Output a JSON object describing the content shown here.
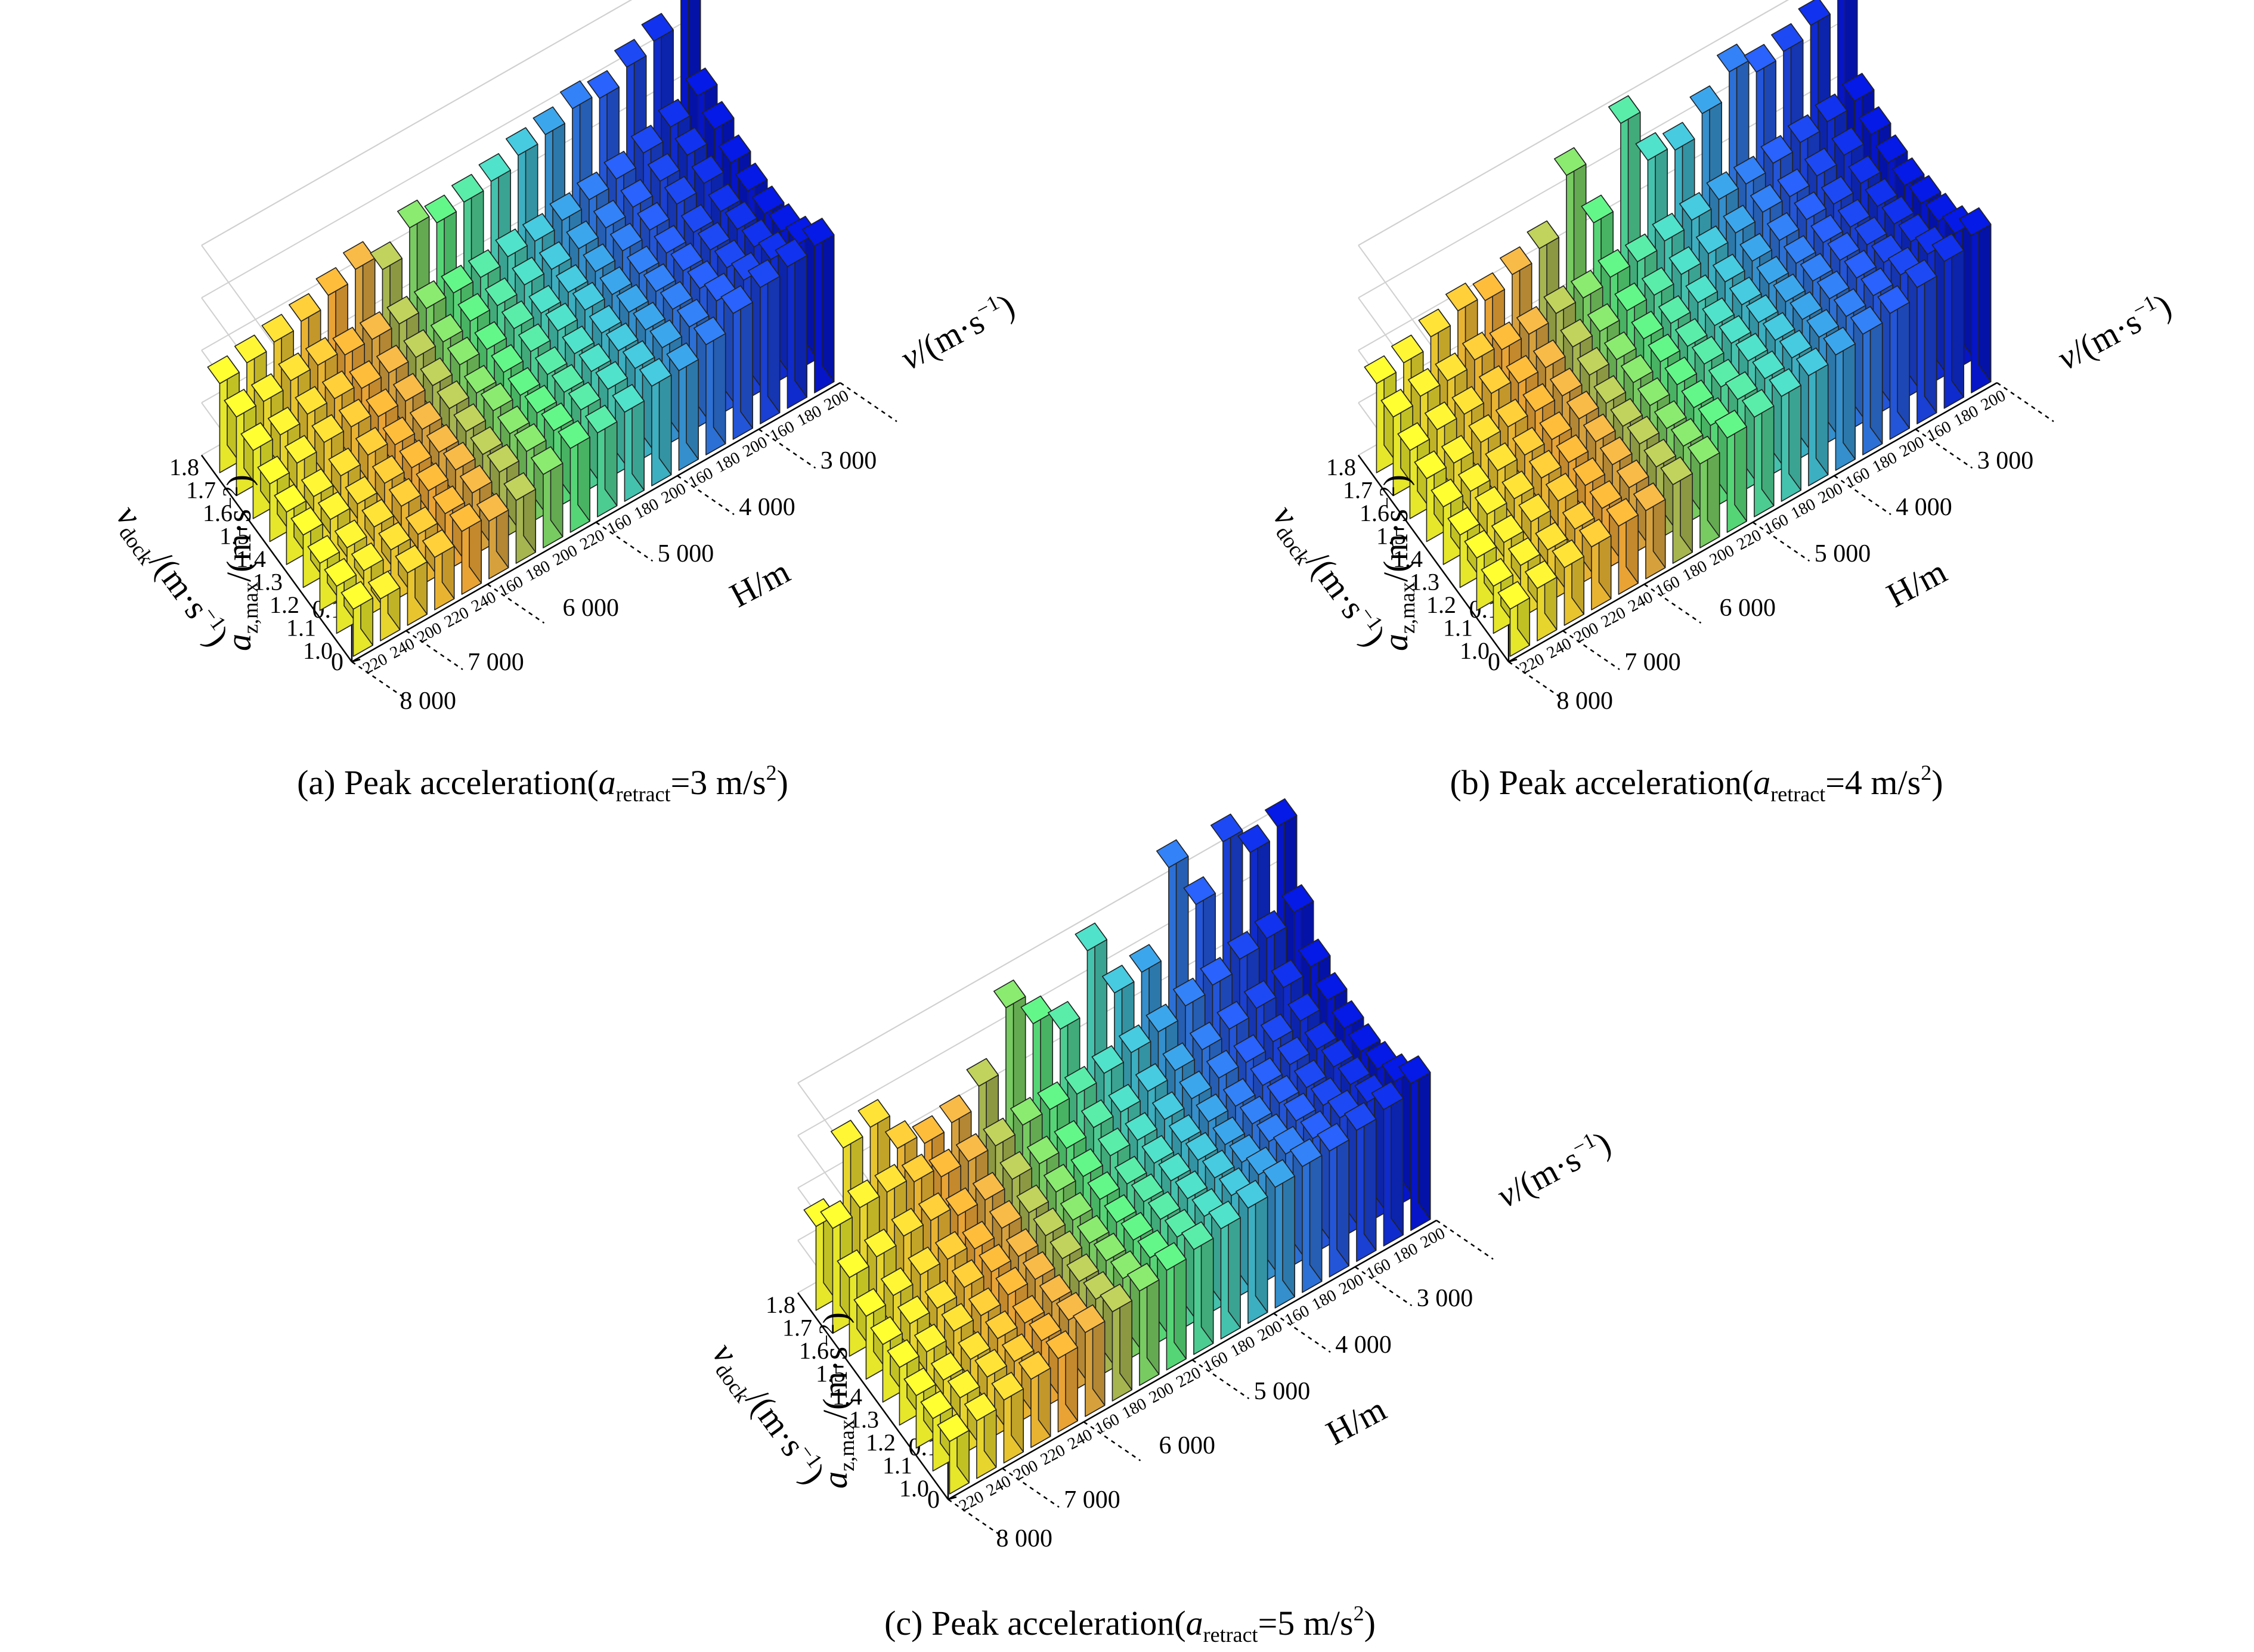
{
  "labels": {
    "z_label": "a",
    "z_label_sub": "z,max",
    "z_label_unit": "/(m·s",
    "z_label_exp": "−2",
    "z_label_close": ")",
    "vdock_label": "v",
    "vdock_label_sub": "dock",
    "vdock_label_unit": "/(m·s",
    "vdock_label_exp": "−1",
    "vdock_label_close": ")",
    "v_label": "v",
    "v_label_unit": "/(m·s",
    "v_label_exp": "−1",
    "v_label_close": ")",
    "h_label": "H/m"
  },
  "axes": {
    "z_ticks": [
      "0",
      "0.1",
      "0.2",
      "0.3",
      "0.4"
    ],
    "vdock_ticks": [
      "1.0",
      "1.1",
      "1.2",
      "1.3",
      "1.4",
      "1.5",
      "1.6",
      "1.7",
      "1.8"
    ],
    "H_groups": [
      "3 000",
      "4 000",
      "5 000",
      "6 000",
      "7 000",
      "8 000"
    ],
    "v_subticks": [
      "160",
      "180",
      "200",
      "220",
      "240"
    ]
  },
  "colors": {
    "yellow": "#f7f72e",
    "orange": "#fba43a",
    "green": "#5fe874",
    "cyan": "#45cccb",
    "blue": "#2a64ec",
    "navy": "#0517d6"
  },
  "captions": [
    {
      "prefix": "(a) Peak acceleration(",
      "var": "a",
      "sub": "retract",
      "mid": "=3 m/s",
      "exp": "2",
      "suffix": ")"
    },
    {
      "prefix": "(b) Peak acceleration(",
      "var": "a",
      "sub": "retract",
      "mid": "=4 m/s",
      "exp": "2",
      "suffix": ")"
    },
    {
      "prefix": "(c) Peak acceleration(",
      "var": "a",
      "sub": "retract",
      "mid": "=5 m/s",
      "exp": "2",
      "suffix": ")"
    }
  ],
  "chart_data": [
    {
      "type": "bar3d",
      "title": "(a) Peak acceleration(aretract=3 m/s2)",
      "xlabel": "H/m · v/(m·s−1)",
      "ylabel": "vdock/(m·s−1)",
      "zlabel": "az,max/(m·s−2)",
      "zlim": [
        0,
        0.4
      ],
      "x_levels": [
        "8000/240",
        "8000/220",
        "7000/240",
        "7000/220",
        "7000/200",
        "6000/220",
        "6000/200",
        "6000/180",
        "6000/160",
        "5000/200",
        "5000/180",
        "5000/160",
        "4000/200",
        "4000/180",
        "4000/160",
        "3000/200",
        "3000/180",
        "3000/160"
      ],
      "y_levels": [
        1.0,
        1.1,
        1.2,
        1.3,
        1.4,
        1.5,
        1.6,
        1.7,
        1.8
      ],
      "values": [
        [
          0.09,
          0.08,
          0.1,
          0.1,
          0.12,
          0.11,
          0.12,
          0.14,
          0.16,
          0.16,
          0.17,
          0.19,
          0.19,
          0.21,
          0.24,
          0.26,
          0.27,
          0.28
        ],
        [
          0.09,
          0.09,
          0.1,
          0.1,
          0.11,
          0.12,
          0.13,
          0.14,
          0.15,
          0.16,
          0.17,
          0.18,
          0.19,
          0.2,
          0.22,
          0.23,
          0.24,
          0.24
        ],
        [
          0.09,
          0.09,
          0.1,
          0.11,
          0.11,
          0.12,
          0.12,
          0.13,
          0.14,
          0.15,
          0.16,
          0.17,
          0.18,
          0.19,
          0.2,
          0.21,
          0.22,
          0.22
        ],
        [
          0.1,
          0.1,
          0.1,
          0.11,
          0.11,
          0.11,
          0.12,
          0.13,
          0.13,
          0.14,
          0.15,
          0.16,
          0.17,
          0.18,
          0.19,
          0.2,
          0.21,
          0.21
        ],
        [
          0.1,
          0.1,
          0.11,
          0.12,
          0.11,
          0.11,
          0.12,
          0.12,
          0.13,
          0.14,
          0.15,
          0.16,
          0.16,
          0.17,
          0.18,
          0.19,
          0.2,
          0.21
        ],
        [
          0.11,
          0.12,
          0.13,
          0.13,
          0.12,
          0.12,
          0.12,
          0.13,
          0.13,
          0.14,
          0.14,
          0.15,
          0.16,
          0.17,
          0.18,
          0.2,
          0.21,
          0.22
        ],
        [
          0.13,
          0.13,
          0.14,
          0.14,
          0.13,
          0.13,
          0.13,
          0.13,
          0.14,
          0.14,
          0.15,
          0.15,
          0.16,
          0.17,
          0.18,
          0.2,
          0.22,
          0.24
        ],
        [
          0.15,
          0.15,
          0.16,
          0.16,
          0.15,
          0.15,
          0.15,
          0.15,
          0.15,
          0.15,
          0.16,
          0.16,
          0.17,
          0.18,
          0.19,
          0.21,
          0.23,
          0.26
        ],
        [
          0.17,
          0.18,
          0.19,
          0.2,
          0.22,
          0.24,
          0.21,
          0.26,
          0.24,
          0.25,
          0.26,
          0.28,
          0.29,
          0.31,
          0.3,
          0.33,
          0.35,
          0.45
        ]
      ]
    },
    {
      "type": "bar3d",
      "title": "(b) Peak acceleration(aretract=4 m/s2)",
      "xlabel": "H/m · v/(m·s−1)",
      "ylabel": "vdock/(m·s−1)",
      "zlabel": "az,max/(m·s−2)",
      "zlim": [
        0,
        0.4
      ],
      "x_levels": [
        "8000/240",
        "8000/220",
        "7000/240",
        "7000/220",
        "7000/200",
        "6000/220",
        "6000/200",
        "6000/180",
        "6000/160",
        "5000/200",
        "5000/180",
        "5000/160",
        "4000/200",
        "4000/180",
        "4000/160",
        "3000/200",
        "3000/180",
        "3000/160"
      ],
      "y_levels": [
        1.0,
        1.1,
        1.2,
        1.3,
        1.4,
        1.5,
        1.6,
        1.7,
        1.8
      ],
      "values": [
        [
          0.09,
          0.1,
          0.11,
          0.12,
          0.13,
          0.13,
          0.15,
          0.16,
          0.18,
          0.19,
          0.2,
          0.21,
          0.22,
          0.23,
          0.24,
          0.26,
          0.28,
          0.3
        ],
        [
          0.09,
          0.1,
          0.1,
          0.11,
          0.12,
          0.13,
          0.14,
          0.15,
          0.16,
          0.18,
          0.19,
          0.2,
          0.21,
          0.22,
          0.23,
          0.24,
          0.25,
          0.26
        ],
        [
          0.1,
          0.1,
          0.11,
          0.12,
          0.12,
          0.13,
          0.14,
          0.14,
          0.15,
          0.16,
          0.18,
          0.19,
          0.2,
          0.21,
          0.22,
          0.22,
          0.23,
          0.24
        ],
        [
          0.1,
          0.11,
          0.11,
          0.12,
          0.12,
          0.13,
          0.13,
          0.14,
          0.15,
          0.16,
          0.17,
          0.18,
          0.19,
          0.2,
          0.21,
          0.21,
          0.22,
          0.23
        ],
        [
          0.11,
          0.11,
          0.12,
          0.12,
          0.12,
          0.13,
          0.13,
          0.14,
          0.15,
          0.15,
          0.16,
          0.17,
          0.18,
          0.19,
          0.2,
          0.2,
          0.21,
          0.22
        ],
        [
          0.12,
          0.12,
          0.13,
          0.13,
          0.13,
          0.13,
          0.14,
          0.14,
          0.15,
          0.15,
          0.16,
          0.17,
          0.18,
          0.19,
          0.2,
          0.2,
          0.21,
          0.22
        ],
        [
          0.13,
          0.14,
          0.14,
          0.15,
          0.14,
          0.14,
          0.15,
          0.15,
          0.16,
          0.16,
          0.17,
          0.18,
          0.19,
          0.2,
          0.2,
          0.21,
          0.22,
          0.23
        ],
        [
          0.15,
          0.16,
          0.16,
          0.17,
          0.16,
          0.16,
          0.17,
          0.17,
          0.18,
          0.18,
          0.19,
          0.2,
          0.21,
          0.21,
          0.22,
          0.23,
          0.24,
          0.25
        ],
        [
          0.17,
          0.18,
          0.2,
          0.22,
          0.21,
          0.23,
          0.25,
          0.36,
          0.24,
          0.4,
          0.3,
          0.29,
          0.33,
          0.38,
          0.35,
          0.36,
          0.38,
          0.48
        ]
      ]
    },
    {
      "type": "bar3d",
      "title": "(c) Peak acceleration(aretract=5 m/s2)",
      "xlabel": "H/m · v/(m·s−1)",
      "ylabel": "vdock/(m·s−1)",
      "zlabel": "az,max/(m·s−2)",
      "zlim": [
        0,
        0.4
      ],
      "x_levels": [
        "8000/240",
        "8000/220",
        "7000/240",
        "7000/220",
        "7000/200",
        "6000/220",
        "6000/200",
        "6000/180",
        "6000/160",
        "5000/200",
        "5000/180",
        "5000/160",
        "4000/200",
        "4000/180",
        "4000/160",
        "3000/200",
        "3000/180",
        "3000/160"
      ],
      "y_levels": [
        1.0,
        1.1,
        1.2,
        1.3,
        1.4,
        1.5,
        1.6,
        1.7,
        1.8
      ],
      "values": [
        [
          0.1,
          0.11,
          0.12,
          0.13,
          0.14,
          0.16,
          0.17,
          0.18,
          0.19,
          0.2,
          0.21,
          0.22,
          0.23,
          0.24,
          0.24,
          0.25,
          0.26,
          0.28
        ],
        [
          0.1,
          0.11,
          0.12,
          0.12,
          0.13,
          0.14,
          0.15,
          0.16,
          0.17,
          0.18,
          0.19,
          0.2,
          0.21,
          0.22,
          0.22,
          0.23,
          0.23,
          0.24
        ],
        [
          0.1,
          0.1,
          0.11,
          0.12,
          0.12,
          0.13,
          0.14,
          0.15,
          0.16,
          0.17,
          0.18,
          0.19,
          0.19,
          0.2,
          0.21,
          0.21,
          0.22,
          0.22
        ],
        [
          0.11,
          0.11,
          0.12,
          0.12,
          0.13,
          0.13,
          0.14,
          0.14,
          0.15,
          0.16,
          0.17,
          0.18,
          0.18,
          0.19,
          0.2,
          0.2,
          0.21,
          0.21
        ],
        [
          0.11,
          0.12,
          0.12,
          0.13,
          0.13,
          0.13,
          0.14,
          0.14,
          0.15,
          0.15,
          0.16,
          0.17,
          0.18,
          0.18,
          0.19,
          0.2,
          0.2,
          0.21
        ],
        [
          0.12,
          0.13,
          0.14,
          0.14,
          0.13,
          0.14,
          0.14,
          0.15,
          0.15,
          0.16,
          0.16,
          0.17,
          0.18,
          0.19,
          0.19,
          0.2,
          0.21,
          0.22
        ],
        [
          0.15,
          0.16,
          0.17,
          0.17,
          0.15,
          0.15,
          0.16,
          0.16,
          0.16,
          0.17,
          0.17,
          0.18,
          0.19,
          0.2,
          0.21,
          0.22,
          0.23,
          0.24
        ],
        [
          0.2,
          0.21,
          0.21,
          0.2,
          0.18,
          0.18,
          0.18,
          0.19,
          0.19,
          0.19,
          0.2,
          0.21,
          0.22,
          0.24,
          0.25,
          0.27,
          0.28,
          0.3
        ],
        [
          0.16,
          0.28,
          0.29,
          0.22,
          0.2,
          0.21,
          0.25,
          0.37,
          0.31,
          0.27,
          0.39,
          0.28,
          0.29,
          0.46,
          0.36,
          0.45,
          0.4,
          0.42
        ]
      ]
    }
  ]
}
